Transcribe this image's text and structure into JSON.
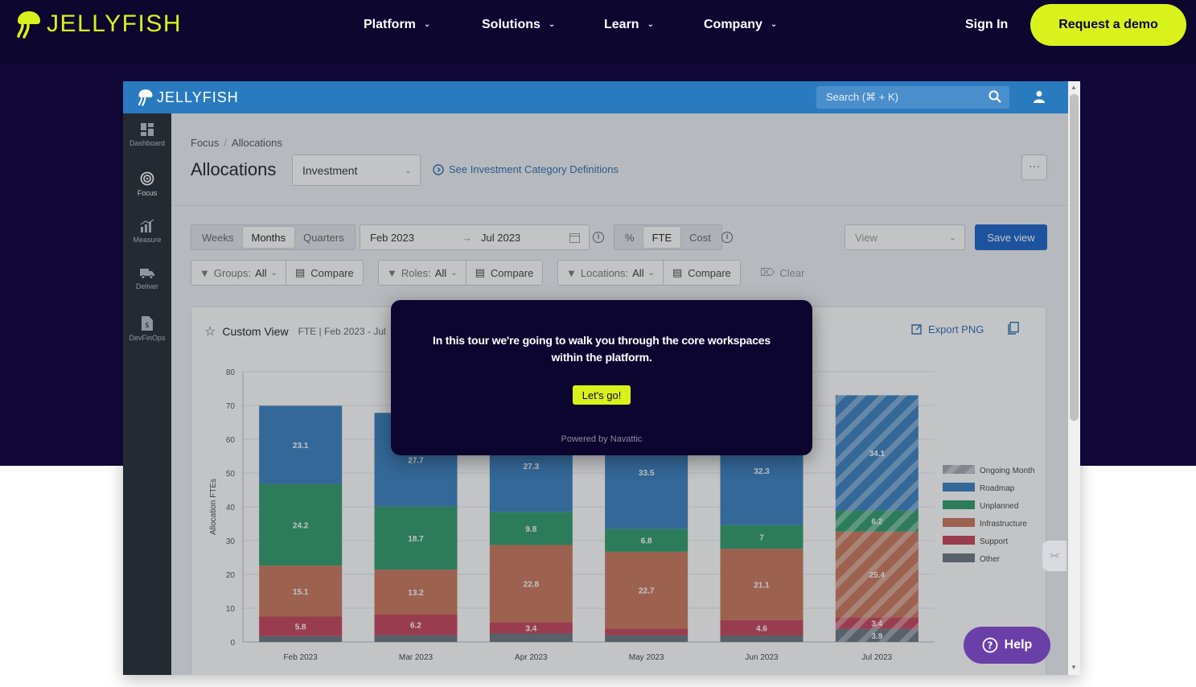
{
  "site": {
    "logo_text": "JELLYFISH",
    "nav": [
      {
        "label": "Platform"
      },
      {
        "label": "Solutions"
      },
      {
        "label": "Learn"
      },
      {
        "label": "Company"
      }
    ],
    "signin_label": "Sign In",
    "demo_label": "Request a demo"
  },
  "app": {
    "logo_text": "JELLYFISH",
    "search_placeholder": "Search (⌘ + K)",
    "sidebar": [
      {
        "label": "Dashboard"
      },
      {
        "label": "Focus"
      },
      {
        "label": "Measure"
      },
      {
        "label": "Deliver"
      },
      {
        "label": "DevFinOps"
      }
    ],
    "breadcrumb": {
      "parent": "Focus",
      "current": "Allocations"
    },
    "page_title": "Allocations",
    "category_select": "Investment",
    "definitions_link": "See Investment Category Definitions",
    "more_label": "···",
    "period_tabs": [
      "Weeks",
      "Months",
      "Quarters"
    ],
    "date_start": "Feb 2023",
    "date_arrow": "→",
    "date_end": "Jul 2023",
    "unit_tabs": [
      "%",
      "FTE",
      "Cost"
    ],
    "view_placeholder": "View",
    "save_view_label": "Save view",
    "filters": [
      {
        "prefix": "Groups:",
        "value": "All",
        "compare": "Compare"
      },
      {
        "prefix": "Roles:",
        "value": "All",
        "compare": "Compare"
      },
      {
        "prefix": "Locations:",
        "value": "All",
        "compare": "Compare"
      }
    ],
    "clear_label": "Clear",
    "card": {
      "title": "Custom View",
      "subtitle": "FTE | Feb 2023 - Jul",
      "export_label": "Export PNG"
    }
  },
  "modal": {
    "text": "In this tour we're going to walk you through the core workspaces within the platform.",
    "button_label": "Let's go!",
    "powered_by": "Powered by Navattic"
  },
  "help_label": "Help",
  "colors": {
    "brand_lime": "#d9f21b",
    "navy": "#0d0730",
    "roadmap": "#3a80c0",
    "unplanned": "#2e9c6b",
    "infrastructure": "#c9785a",
    "support": "#c7435a",
    "other": "#6b7780",
    "ongoing_month": "#a7aab0"
  },
  "chart_data": {
    "type": "bar",
    "stacked": true,
    "ylabel": "Allocation FTEs",
    "ylim": [
      0,
      80
    ],
    "yticks": [
      0,
      10,
      20,
      30,
      40,
      50,
      60,
      70,
      80
    ],
    "categories": [
      "Feb 2023",
      "Mar 2023",
      "Apr 2023",
      "May 2023",
      "Jun 2023",
      "Jul 2023"
    ],
    "series": [
      {
        "name": "Other",
        "values": [
          1.7,
          2.0,
          2.5,
          2.0,
          1.9,
          3.9
        ],
        "labels": [
          "",
          "",
          "",
          "",
          "",
          "3.9"
        ]
      },
      {
        "name": "Support",
        "values": [
          5.8,
          6.2,
          3.4,
          2.0,
          4.6,
          3.4
        ],
        "labels": [
          "5.8",
          "6.2",
          "3.4",
          "",
          "4.6",
          "3.4"
        ]
      },
      {
        "name": "Infrastructure",
        "values": [
          15.1,
          13.2,
          22.8,
          22.7,
          21.1,
          25.4
        ],
        "labels": [
          "15.1",
          "13.2",
          "22.8",
          "22.7",
          "21.1",
          "25.4"
        ]
      },
      {
        "name": "Unplanned",
        "values": [
          24.2,
          18.7,
          9.8,
          6.8,
          7.0,
          6.2
        ],
        "labels": [
          "24.2",
          "18.7",
          "9.8",
          "6.8",
          "7",
          "6.2"
        ]
      },
      {
        "name": "Roadmap",
        "values": [
          23.1,
          27.7,
          27.3,
          33.5,
          32.3,
          34.1
        ],
        "labels": [
          "23.1",
          "27.7",
          "27.3",
          "33.5",
          "32.3",
          "34.1"
        ]
      }
    ],
    "ongoing_month": "Jul 2023",
    "legend": [
      "Ongoing Month",
      "Roadmap",
      "Unplanned",
      "Infrastructure",
      "Support",
      "Other"
    ],
    "legend_position": "right",
    "grid": true
  }
}
